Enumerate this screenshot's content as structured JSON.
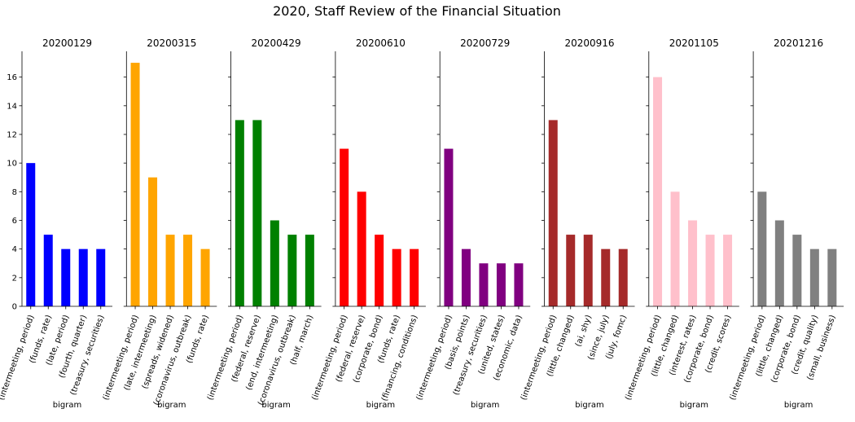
{
  "figure": {
    "title": "2020, Staff Review of the Financial Situation"
  },
  "chart_data": [
    {
      "type": "bar",
      "title": "20200129",
      "xlabel": "bigram",
      "ylabel": "",
      "ylim": [
        0,
        17.8
      ],
      "yticks": [
        0,
        2,
        4,
        6,
        8,
        10,
        12,
        14,
        16
      ],
      "color": "#0000ff",
      "categories": [
        "(intermeeting, period)",
        "(funds, rate)",
        "(late, period)",
        "(fourth, quarter)",
        "(treasury, securities)"
      ],
      "values": [
        10,
        5,
        4,
        4,
        4
      ]
    },
    {
      "type": "bar",
      "title": "20200315",
      "xlabel": "bigram",
      "ylabel": "",
      "ylim": [
        0,
        17.8
      ],
      "yticks": [
        0,
        2,
        4,
        6,
        8,
        10,
        12,
        14,
        16
      ],
      "color": "#ffa500",
      "categories": [
        "(intermeeting, period)",
        "(late, intermeeting)",
        "(spreads, widened)",
        "(coronavirus, outbreak)",
        "(funds, rate)"
      ],
      "values": [
        17,
        9,
        5,
        5,
        4
      ]
    },
    {
      "type": "bar",
      "title": "20200429",
      "xlabel": "bigram",
      "ylabel": "",
      "ylim": [
        0,
        17.8
      ],
      "yticks": [
        0,
        2,
        4,
        6,
        8,
        10,
        12,
        14,
        16
      ],
      "color": "#008000",
      "categories": [
        "(intermeeting, period)",
        "(federal, reserve)",
        "(end, intermeeting)",
        "(coronavirus, outbreak)",
        "(half, march)"
      ],
      "values": [
        13,
        13,
        6,
        5,
        5
      ]
    },
    {
      "type": "bar",
      "title": "20200610",
      "xlabel": "bigram",
      "ylabel": "",
      "ylim": [
        0,
        17.8
      ],
      "yticks": [
        0,
        2,
        4,
        6,
        8,
        10,
        12,
        14,
        16
      ],
      "color": "#ff0000",
      "categories": [
        "(intermeeting, period)",
        "(federal, reserve)",
        "(corporate, bond)",
        "(funds, rate)",
        "(financing, conditions)"
      ],
      "values": [
        11,
        8,
        5,
        4,
        4
      ]
    },
    {
      "type": "bar",
      "title": "20200729",
      "xlabel": "bigram",
      "ylabel": "",
      "ylim": [
        0,
        17.8
      ],
      "yticks": [
        0,
        2,
        4,
        6,
        8,
        10,
        12,
        14,
        16
      ],
      "color": "#800080",
      "categories": [
        "(intermeeting, period)",
        "(basis, points)",
        "(treasury, securities)",
        "(united, states)",
        "(economic, data)"
      ],
      "values": [
        11,
        4,
        3,
        3,
        3
      ]
    },
    {
      "type": "bar",
      "title": "20200916",
      "xlabel": "bigram",
      "ylabel": "",
      "ylim": [
        0,
        17.8
      ],
      "yticks": [
        0,
        2,
        4,
        6,
        8,
        10,
        12,
        14,
        16
      ],
      "color": "#a52a2a",
      "categories": [
        "(intermeeting, period)",
        "(little, changed)",
        "(ai, shy)",
        "(since, july)",
        "(july, fomc)"
      ],
      "values": [
        13,
        5,
        5,
        4,
        4
      ]
    },
    {
      "type": "bar",
      "title": "20201105",
      "xlabel": "bigram",
      "ylabel": "",
      "ylim": [
        0,
        17.8
      ],
      "yticks": [
        0,
        2,
        4,
        6,
        8,
        10,
        12,
        14,
        16
      ],
      "color": "#ffc0cb",
      "categories": [
        "(intermeeting, period)",
        "(little, changed)",
        "(interest, rates)",
        "(corporate, bond)",
        "(credit, scores)"
      ],
      "values": [
        16,
        8,
        6,
        5,
        5
      ]
    },
    {
      "type": "bar",
      "title": "20201216",
      "xlabel": "bigram",
      "ylabel": "",
      "ylim": [
        0,
        17.8
      ],
      "yticks": [
        0,
        2,
        4,
        6,
        8,
        10,
        12,
        14,
        16
      ],
      "color": "#808080",
      "categories": [
        "(intermeeting, period)",
        "(little, changed)",
        "(corporate, bond)",
        "(credit, quality)",
        "(small, business)"
      ],
      "values": [
        8,
        6,
        5,
        4,
        4
      ]
    }
  ]
}
